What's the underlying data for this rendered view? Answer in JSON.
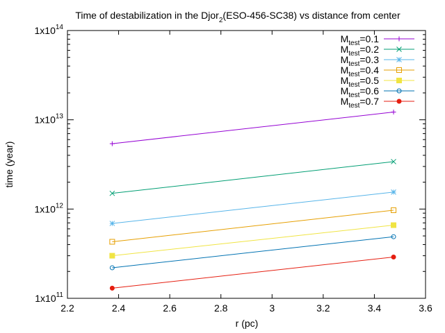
{
  "chart_data": {
    "type": "line",
    "title": {
      "main": "Time of destabilization in the Djor",
      "sub": "2",
      "rest": "(ESO-456-SC38)   vs distance from center"
    },
    "xlabel": "r (pc)",
    "ylabel": "time (year)",
    "x_scale": "linear",
    "y_scale": "log",
    "xlim": [
      2.2,
      3.6
    ],
    "ylim": [
      100000000000.0,
      100000000000000.0
    ],
    "x_ticks": [
      2.2,
      2.4,
      2.6,
      2.8,
      3.0,
      3.2,
      3.4,
      3.6
    ],
    "x_tick_labels": [
      "2.2",
      "2.4",
      "2.6",
      "2.8",
      "3",
      "3.2",
      "3.4",
      "3.6"
    ],
    "y_ticks": [
      {
        "value": 100000000000.0,
        "base": "1x10",
        "exp": "11"
      },
      {
        "value": 1000000000000.0,
        "base": "1x10",
        "exp": "12"
      },
      {
        "value": 10000000000000.0,
        "base": "1x10",
        "exp": "13"
      },
      {
        "value": 100000000000000.0,
        "base": "1x10",
        "exp": "14"
      }
    ],
    "grid": false,
    "legend_position": "top-right",
    "legend_prefix": "M",
    "legend_subscript": "test",
    "series": [
      {
        "name": "=0.1",
        "color": "#9400d3",
        "marker": "plus",
        "x": [
          2.375,
          3.475
        ],
        "y": [
          5400000000000.0,
          12200000000000.0
        ]
      },
      {
        "name": "=0.2",
        "color": "#009e73",
        "marker": "cross",
        "x": [
          2.375,
          3.475
        ],
        "y": [
          1500000000000.0,
          3400000000000.0
        ]
      },
      {
        "name": "=0.3",
        "color": "#56b4e9",
        "marker": "star",
        "x": [
          2.375,
          3.475
        ],
        "y": [
          690000000000.0,
          1550000000000.0
        ]
      },
      {
        "name": "=0.4",
        "color": "#e69f00",
        "marker": "square-open",
        "x": [
          2.375,
          3.475
        ],
        "y": [
          430000000000.0,
          970000000000.0
        ]
      },
      {
        "name": "=0.5",
        "color": "#f0e442",
        "marker": "square-filled",
        "x": [
          2.375,
          3.475
        ],
        "y": [
          300000000000.0,
          660000000000.0
        ]
      },
      {
        "name": "=0.6",
        "color": "#0072b2",
        "marker": "circle-open",
        "x": [
          2.375,
          3.475
        ],
        "y": [
          220000000000.0,
          490000000000.0
        ]
      },
      {
        "name": "=0.7",
        "color": "#e51e10",
        "marker": "circle-filled",
        "x": [
          2.375,
          3.475
        ],
        "y": [
          130000000000.0,
          290000000000.0
        ]
      }
    ]
  }
}
